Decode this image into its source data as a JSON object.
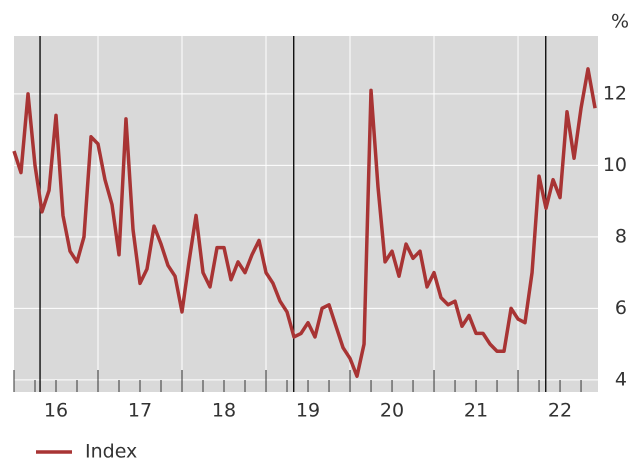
{
  "chart_data": {
    "type": "line",
    "unit": "%",
    "x": [
      2016,
      2016.083,
      2016.167,
      2016.25,
      2016.333,
      2016.417,
      2016.5,
      2016.583,
      2016.667,
      2016.75,
      2016.833,
      2016.917,
      2017,
      2017.083,
      2017.167,
      2017.25,
      2017.333,
      2017.417,
      2017.5,
      2017.583,
      2017.667,
      2017.75,
      2017.833,
      2017.917,
      2018,
      2018.083,
      2018.167,
      2018.25,
      2018.333,
      2018.417,
      2018.5,
      2018.583,
      2018.667,
      2018.75,
      2018.833,
      2018.917,
      2019,
      2019.083,
      2019.167,
      2019.25,
      2019.333,
      2019.417,
      2019.5,
      2019.583,
      2019.667,
      2019.75,
      2019.833,
      2019.917,
      2020,
      2020.083,
      2020.167,
      2020.25,
      2020.333,
      2020.417,
      2020.5,
      2020.583,
      2020.667,
      2020.75,
      2020.833,
      2020.917,
      2021,
      2021.083,
      2021.167,
      2021.25,
      2021.333,
      2021.417,
      2021.5,
      2021.583,
      2021.667,
      2021.75,
      2021.833,
      2021.917,
      2022,
      2022.083,
      2022.167,
      2022.25,
      2022.333,
      2022.417,
      2022.5,
      2022.583,
      2022.667,
      2022.75,
      2022.833,
      2022.917
    ],
    "series": [
      {
        "name": "Index",
        "color": "#a83434",
        "values": [
          10.4,
          9.8,
          12.0,
          10.0,
          8.7,
          9.3,
          11.4,
          8.6,
          7.6,
          7.3,
          8.0,
          10.8,
          10.6,
          9.6,
          8.9,
          7.5,
          11.3,
          8.2,
          6.7,
          7.1,
          8.3,
          7.8,
          7.2,
          6.9,
          5.9,
          7.3,
          8.6,
          7.0,
          6.6,
          7.7,
          7.7,
          6.8,
          7.3,
          7.0,
          7.5,
          7.9,
          7.0,
          6.7,
          6.2,
          5.9,
          5.2,
          5.3,
          5.6,
          5.2,
          6.0,
          6.1,
          5.5,
          4.9,
          4.6,
          4.1,
          5.0,
          12.1,
          9.4,
          7.3,
          7.6,
          6.9,
          7.8,
          7.4,
          7.6,
          6.6,
          7.0,
          6.3,
          6.1,
          6.2,
          5.5,
          5.8,
          5.3,
          5.3,
          5.0,
          4.8,
          4.8,
          6.0,
          5.7,
          5.6,
          7.0,
          9.7,
          8.8,
          9.6,
          9.1,
          11.5,
          10.2,
          11.6,
          12.7,
          11.6
        ]
      }
    ],
    "xlim": [
      2016,
      2022.952
    ],
    "xticks": [
      {
        "value": 2016.5,
        "label": "16"
      },
      {
        "value": 2017.5,
        "label": "17"
      },
      {
        "value": 2018.5,
        "label": "18"
      },
      {
        "value": 2019.5,
        "label": "19"
      },
      {
        "value": 2020.5,
        "label": "20"
      },
      {
        "value": 2021.5,
        "label": "21"
      },
      {
        "value": 2022.5,
        "label": "22"
      }
    ],
    "xgrid": [
      2017,
      2018,
      2019,
      2020,
      2021,
      2022
    ],
    "vlines": [
      2016.31,
      2019.33,
      2022.33
    ],
    "ylim": [
      3.66,
      13.62
    ],
    "yticks": [
      4,
      6,
      8,
      10,
      12
    ],
    "grid": true,
    "legend": "bottom-left"
  }
}
